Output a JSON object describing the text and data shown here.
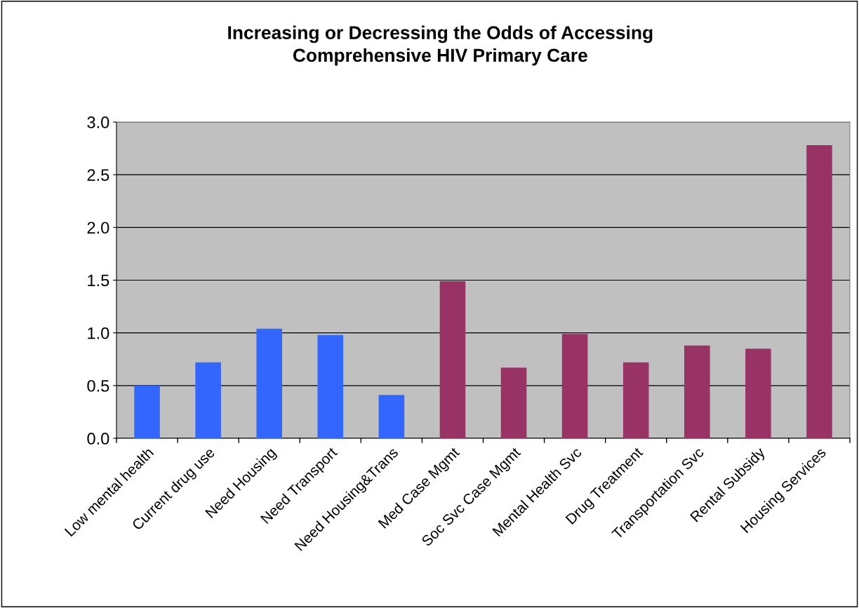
{
  "chart_data": {
    "type": "bar",
    "title": "Increasing or Decressing the Odds of Accessing\nComprehensive HIV Primary Care",
    "categories": [
      "Low mental health",
      "Current drug use",
      "Need Housing",
      "Need Transport",
      "Need Housing&Trans",
      "Med Case Mgmt",
      "Soc Svc Case Mgmt",
      "Mental Health Svc",
      "Drug Treatment",
      "Transportation Svc",
      "Rental Subsidy",
      "Housing Services"
    ],
    "values": [
      0.5,
      0.72,
      1.04,
      0.98,
      0.41,
      1.49,
      0.67,
      0.99,
      0.72,
      0.88,
      0.85,
      2.78
    ],
    "colors": [
      "#3366ff",
      "#3366ff",
      "#3366ff",
      "#3366ff",
      "#3366ff",
      "#993366",
      "#993366",
      "#993366",
      "#993366",
      "#993366",
      "#993366",
      "#993366"
    ],
    "ylim": [
      0,
      3
    ],
    "yticks": [
      {
        "value": 0,
        "label": "0.0"
      },
      {
        "value": 0.5,
        "label": "0.5"
      },
      {
        "value": 1,
        "label": "1.0"
      },
      {
        "value": 1.5,
        "label": "1.5"
      },
      {
        "value": 2,
        "label": "2.0"
      },
      {
        "value": 2.5,
        "label": "2.5"
      },
      {
        "value": 3,
        "label": "3.0"
      }
    ],
    "grid": "y",
    "legend": false
  }
}
